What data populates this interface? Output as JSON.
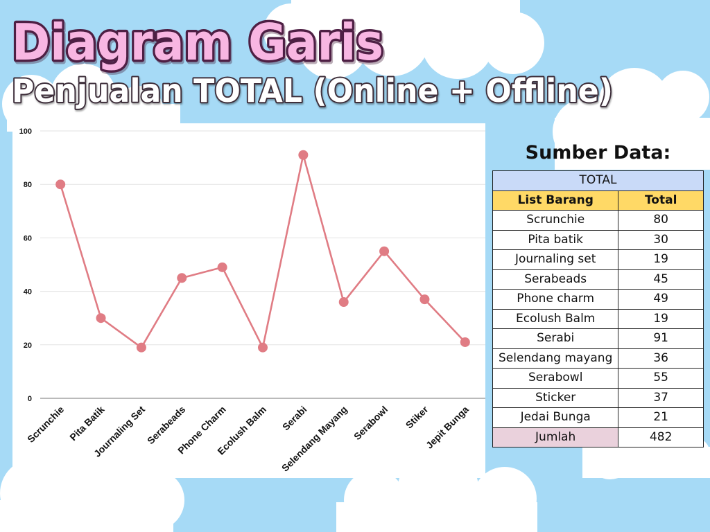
{
  "colors": {
    "background": "#a6daf6",
    "cloud": "#ffffff",
    "title_fill": "#f8b6e2",
    "title_outline": "#4e1f44",
    "subtitle_fill": "#ffffff",
    "line": "#e07c84",
    "table_title_bg": "#c9daf8",
    "table_header_bg": "#ffd966",
    "table_footer_bg": "#ead1dc"
  },
  "chart_data": {
    "type": "line",
    "title": "Diagram Garis",
    "subtitle": "Penjualan TOTAL (Online + Offline)",
    "categories": [
      "Scrunchie",
      "Pita Batik",
      "Journaling Set",
      "Serabeads",
      "Phone Charm",
      "Ecolush Balm",
      "Serabi",
      "Selendang Mayang",
      "Serabowl",
      "Stiker",
      "Jepit Bunga"
    ],
    "values": [
      80,
      30,
      19,
      45,
      49,
      19,
      91,
      36,
      55,
      37,
      21
    ],
    "ylim": [
      0,
      100
    ],
    "yticks": [
      0,
      20,
      40,
      60,
      80,
      100
    ],
    "grid": true
  },
  "source": {
    "heading": "Sumber Data:",
    "table_title": "TOTAL",
    "columns": [
      "List Barang",
      "Total"
    ],
    "rows": [
      {
        "item": "Scrunchie",
        "total": 80
      },
      {
        "item": "Pita batik",
        "total": 30
      },
      {
        "item": "Journaling set",
        "total": 19
      },
      {
        "item": "Serabeads",
        "total": 45
      },
      {
        "item": "Phone charm",
        "total": 49
      },
      {
        "item": "Ecolush Balm",
        "total": 19
      },
      {
        "item": "Serabi",
        "total": 91
      },
      {
        "item": "Selendang mayang",
        "total": 36
      },
      {
        "item": "Serabowl",
        "total": 55
      },
      {
        "item": "Sticker",
        "total": 37
      },
      {
        "item": "Jedai Bunga",
        "total": 21
      }
    ],
    "footer": {
      "label": "Jumlah",
      "total": 482
    }
  }
}
